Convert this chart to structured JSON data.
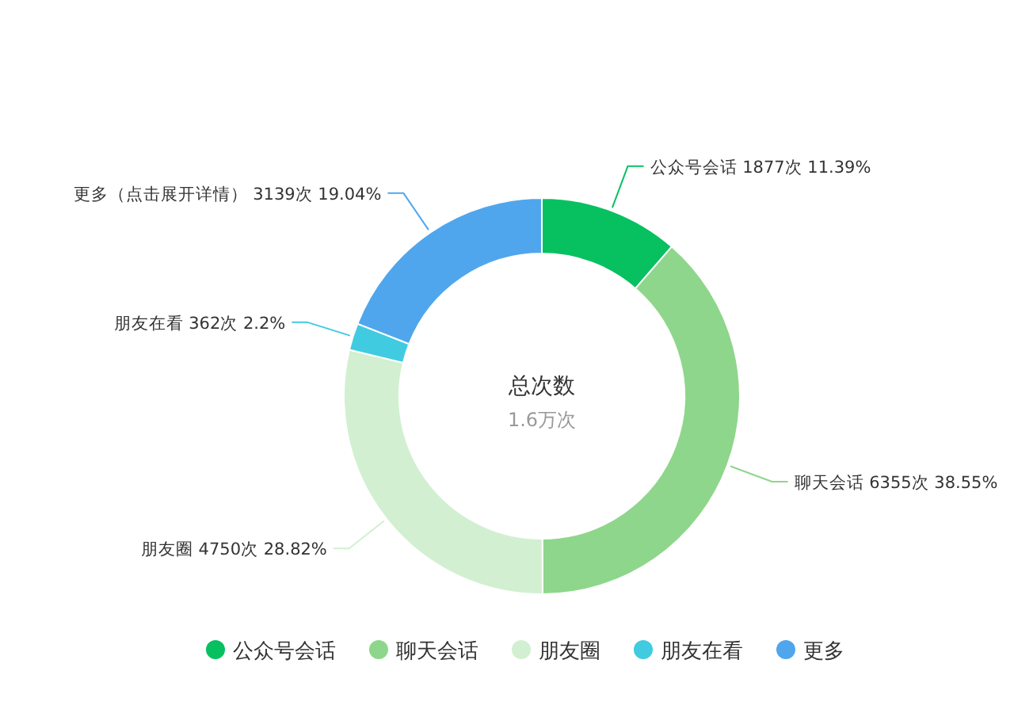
{
  "chart_data": {
    "type": "donut",
    "title": "总次数",
    "subtitle": "1.6万次",
    "categories": [
      "公众号会话",
      "聊天会话",
      "朋友圈",
      "朋友在看",
      "更多"
    ],
    "values": [
      1877,
      6355,
      4750,
      362,
      3139
    ],
    "colors": [
      "#07c160",
      "#8ed68b",
      "#d2f0d1",
      "#40cbe0",
      "#50a6ed"
    ],
    "value_labels": [
      "公众号会话 1877次 11.39%",
      "聊天会话 6355次 38.55%",
      "朋友圈 4750次 28.82%",
      "朋友在看 362次 2.2%",
      "更多（点击展开详情） 3139次 19.04%"
    ],
    "legend": "bottom"
  }
}
